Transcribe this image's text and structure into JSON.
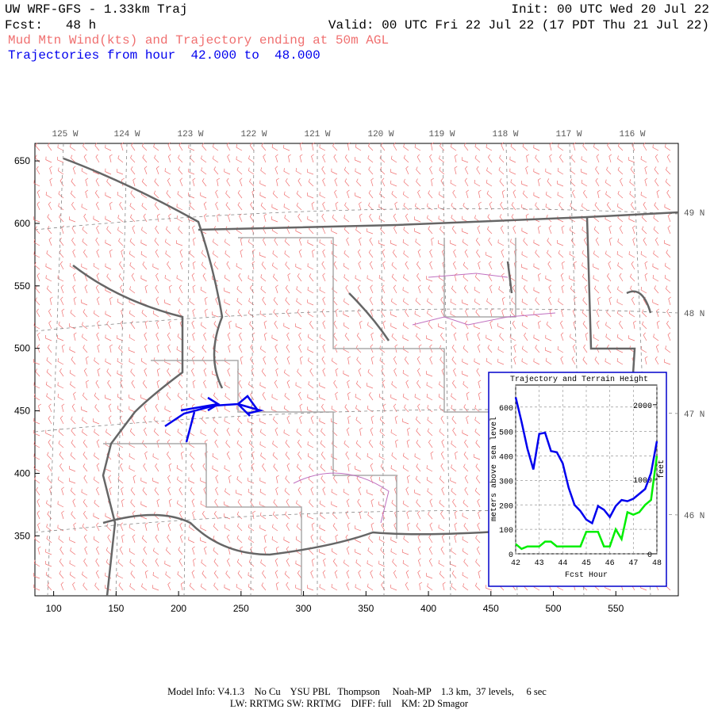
{
  "header": {
    "title": "UW WRF-GFS - 1.33km Traj",
    "init": "Init: 00 UTC Wed 20 Jul 22",
    "fcst": "Fcst:   48 h",
    "valid": "Valid: 00 UTC Fri 22 Jul 22 (17 PDT Thu 21 Jul 22)",
    "subtitle": "Mud Mtn Wind(kts) and Trajectory ending at 50m AGL",
    "trajectory_hours": "Trajectories from hour  42.000 to  48.000"
  },
  "map": {
    "xlim": [
      85,
      600
    ],
    "ylim": [
      302,
      664
    ],
    "xticks": [
      100,
      150,
      200,
      250,
      300,
      350,
      400,
      450,
      500,
      550
    ],
    "yticks": [
      350,
      400,
      450,
      500,
      550,
      600,
      650
    ],
    "lon_labels": [
      "125 W",
      "124 W",
      "123 W",
      "122 W",
      "121 W",
      "120 W",
      "119 W",
      "118 W",
      "117 W",
      "116 W"
    ],
    "lat_labels": [
      "49 N",
      "48 N",
      "47 N",
      "46 N"
    ]
  },
  "chart_data": {
    "type": "line",
    "title": "Trajectory and Terrain Height",
    "x_label": "Fcst Hour",
    "y_label": "meters above sea level",
    "y2_label": "feet",
    "x": [
      42,
      42.25,
      42.5,
      42.75,
      43,
      43.25,
      43.5,
      43.75,
      44,
      44.25,
      44.5,
      44.75,
      45,
      45.25,
      45.5,
      45.75,
      46,
      46.25,
      46.5,
      46.75,
      47,
      47.25,
      47.5,
      47.75,
      48
    ],
    "xlim": [
      42,
      48
    ],
    "xticks": [
      42,
      43,
      44,
      45,
      46,
      47,
      48
    ],
    "ylim": [
      0,
      690
    ],
    "yticks": [
      0,
      100,
      200,
      300,
      400,
      500,
      600
    ],
    "y2lim": [
      0,
      2264
    ],
    "y2ticks": [
      0,
      1000,
      2000
    ],
    "grid": true,
    "series": [
      {
        "color": "#0000ee",
        "values": [
          640,
          540,
          430,
          345,
          490,
          495,
          420,
          415,
          370,
          270,
          200,
          175,
          140,
          125,
          195,
          180,
          150,
          195,
          220,
          215,
          225,
          245,
          265,
          330,
          460
        ]
      },
      {
        "color": "#00ee00",
        "values": [
          40,
          20,
          30,
          30,
          30,
          50,
          50,
          30,
          30,
          30,
          30,
          30,
          90,
          90,
          90,
          30,
          30,
          100,
          60,
          170,
          160,
          170,
          200,
          220,
          400
        ]
      }
    ]
  },
  "footer": {
    "line1": "Model Info: V4.1.3    No Cu    YSU PBL   Thompson     Noah-MP    1.3 km,  37 levels,     6 sec",
    "line2": "LW: RRTMG SW: RRTMG    DIFF: full    KM: 2D Smagor"
  }
}
